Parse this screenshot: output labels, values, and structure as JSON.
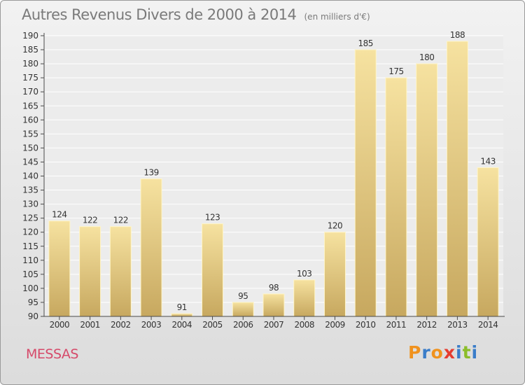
{
  "header": {
    "title": "Autres Revenus Divers de 2000 à 2014",
    "subtitle": "(en milliers d'€)"
  },
  "footer": {
    "town": "MESSAS",
    "brand": "Proxiti",
    "brand_letters": [
      "P",
      "r",
      "o",
      "x",
      "i",
      "t",
      "i"
    ],
    "brand_colors": [
      "#f0921e",
      "#3a7dc9",
      "#f0921e",
      "#e63c2f",
      "#3a7dc9",
      "#8bbd2a",
      "#3a7dc9"
    ]
  },
  "chart_data": {
    "type": "bar",
    "title": "Autres Revenus Divers de 2000 à 2014",
    "subtitle": "(en milliers d'€)",
    "xlabel": "",
    "ylabel": "",
    "categories": [
      "2000",
      "2001",
      "2002",
      "2003",
      "2004",
      "2005",
      "2006",
      "2007",
      "2008",
      "2009",
      "2010",
      "2011",
      "2012",
      "2013",
      "2014"
    ],
    "values": [
      124,
      122,
      122,
      139,
      91,
      123,
      95,
      98,
      103,
      120,
      185,
      175,
      180,
      188,
      143
    ],
    "ylim": [
      90,
      190
    ],
    "yticks": [
      90,
      95,
      100,
      105,
      110,
      115,
      120,
      125,
      130,
      135,
      140,
      145,
      150,
      155,
      160,
      165,
      170,
      175,
      180,
      185,
      190
    ],
    "grid": true,
    "bar_color_light": "#f6e2a0",
    "bar_color_dark": "#c7a85f",
    "axis_color": "#4a4a4a"
  }
}
